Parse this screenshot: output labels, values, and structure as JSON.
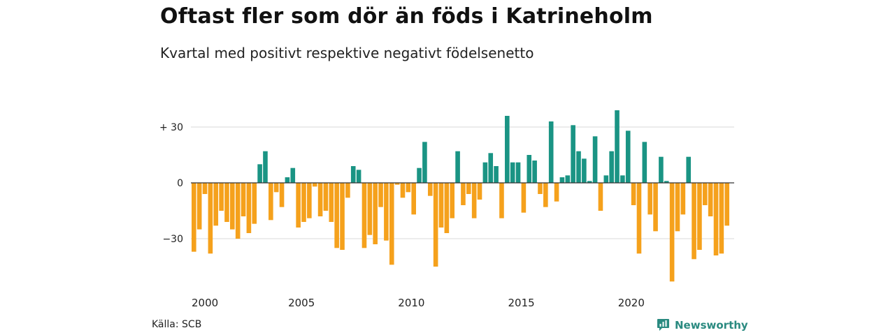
{
  "title": "Oftast fler som dör än föds i Katrineholm",
  "subtitle": "Kvartal med positivt respektive negativt födelsenetto",
  "source": "Källa: SCB",
  "brand": {
    "name": "Newsworthy",
    "icon": "newsworthy-logo-icon"
  },
  "colors": {
    "positive": "#1a9484",
    "negative": "#f5a11c",
    "grid": "#d9d9d9",
    "zero": "#333333"
  },
  "chart_data": {
    "type": "bar",
    "title": "Oftast fler som dör än föds i Katrineholm",
    "subtitle": "Kvartal med positivt respektive negativt födelsenetto",
    "ylim": [
      -53,
      40
    ],
    "yticks": [
      30,
      0,
      -30
    ],
    "ytick_labels": [
      "+ 30",
      "0",
      "−30"
    ],
    "xticks": [
      "2000",
      "2005",
      "2010",
      "2015",
      "2020"
    ],
    "grid": true,
    "x_start_year": 2000,
    "series": [
      {
        "values": [
          -37,
          -25,
          -6,
          -38,
          -23,
          -15,
          -21,
          -25,
          -30,
          -18,
          -27,
          -22,
          10,
          17,
          -20,
          -5,
          -13,
          3,
          8,
          -24,
          -21,
          -19,
          -2,
          -18,
          -15,
          -21,
          -35,
          -36,
          -8,
          9,
          7,
          -35,
          -28,
          -33,
          -13,
          -31,
          -44,
          -1,
          -8,
          -5,
          -17,
          8,
          22,
          -7,
          -45,
          -24,
          -27,
          -19,
          17,
          -12,
          -6,
          -19,
          -9,
          11,
          16,
          9,
          -19,
          36,
          11,
          11,
          -16,
          15,
          12,
          -6,
          -13,
          33,
          -10,
          3,
          4,
          31,
          17,
          13,
          1,
          25,
          -15,
          4,
          17,
          39,
          4,
          28,
          -12,
          -38,
          22,
          -17,
          -26,
          14,
          1,
          -53,
          -26,
          -17,
          14,
          -41,
          -36,
          -12,
          -18,
          -39,
          -38,
          -23
        ]
      }
    ]
  }
}
